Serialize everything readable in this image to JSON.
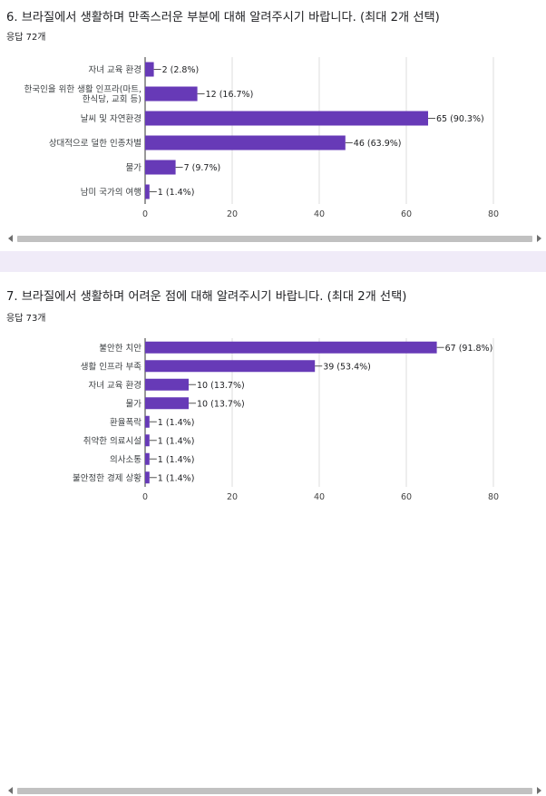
{
  "q1": {
    "title": "6. 브라질에서 생활하며 만족스러운 부분에 대해 알려주시기 바랍니다. (최대 2개 선택)",
    "count": "응답 72개"
  },
  "q2": {
    "title": "7. 브라질에서 생활하며 어려운 점에 대해 알려주시기 바랍니다. (최대 2개 선택)",
    "count": "응답 73개"
  },
  "colors": {
    "bar": "#673ab7",
    "grid": "#dddddd",
    "axis": "#333333",
    "band": "#f0ebf8"
  },
  "chart_data": [
    {
      "type": "bar",
      "orientation": "horizontal",
      "title": "6. 브라질에서 생활하며 만족스러운 부분에 대해 알려주시기 바랍니다. (최대 2개 선택)",
      "categories": [
        [
          "자녀 교육 환경"
        ],
        [
          "한국인을 위한 생활 인프라(마트,",
          "한식당, 교회 등)"
        ],
        [
          "날씨 및 자연환경"
        ],
        [
          "상대적으로 덜한 인종차별"
        ],
        [
          "물가"
        ],
        [
          "남미 국가의 여행"
        ]
      ],
      "values": [
        2,
        12,
        65,
        46,
        7,
        1
      ],
      "value_labels": [
        "2 (2.8%)",
        "12 (16.7%)",
        "65 (90.3%)",
        "46 (63.9%)",
        "7 (9.7%)",
        "1 (1.4%)"
      ],
      "xlim": [
        0,
        80
      ],
      "xticks": [
        0,
        20,
        40,
        60,
        80
      ],
      "grid": true
    },
    {
      "type": "bar",
      "orientation": "horizontal",
      "title": "7. 브라질에서 생활하며 어려운 점에 대해 알려주시기 바랍니다. (최대 2개 선택)",
      "categories": [
        [
          "불안한 치안"
        ],
        [
          "생활 인프라 부족"
        ],
        [
          "자녀 교육 환경"
        ],
        [
          "물가"
        ],
        [
          "환율폭락"
        ],
        [
          "취약한 의료시설"
        ],
        [
          "의사소통"
        ],
        [
          "불안정한 경제 상황"
        ]
      ],
      "values": [
        67,
        39,
        10,
        10,
        1,
        1,
        1,
        1
      ],
      "value_labels": [
        "67 (91.8%)",
        "39 (53.4%)",
        "10 (13.7%)",
        "10 (13.7%)",
        "1 (1.4%)",
        "1 (1.4%)",
        "1 (1.4%)",
        "1 (1.4%)"
      ],
      "xlim": [
        0,
        80
      ],
      "xticks": [
        0,
        20,
        40,
        60,
        80
      ],
      "grid": true
    }
  ]
}
